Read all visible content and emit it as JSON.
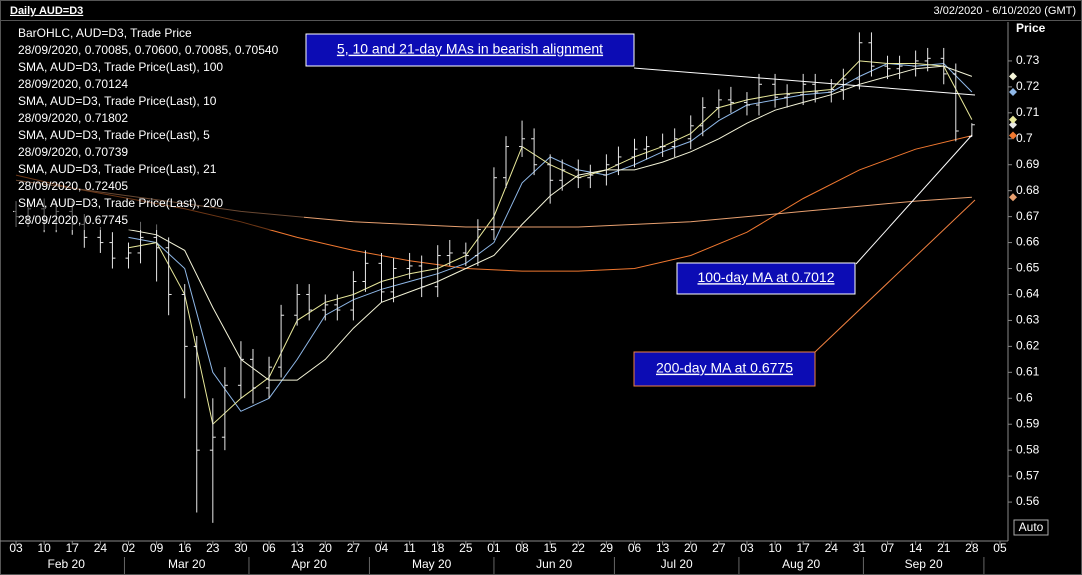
{
  "chart_data": {
    "type": "ohlc",
    "title": "Daily AUD=D3",
    "range_label": "3/02/2020 - 6/10/2020 (GMT)",
    "y_label": "Price",
    "scale_button": "Auto",
    "name": "BarOHLC, AUD=D3, Trade Price",
    "readout": "28/09/2020, 0.70085, 0.70600, 0.70085, 0.70540",
    "color": "#e8e8e8",
    "x": [
      "2020-02-03",
      "2020-02-06",
      "2020-02-10",
      "2020-02-13",
      "2020-02-17",
      "2020-02-20",
      "2020-02-24",
      "2020-02-27",
      "2020-03-02",
      "2020-03-05",
      "2020-03-09",
      "2020-03-12",
      "2020-03-16",
      "2020-03-19",
      "2020-03-23",
      "2020-03-26",
      "2020-03-30",
      "2020-04-02",
      "2020-04-06",
      "2020-04-09",
      "2020-04-13",
      "2020-04-16",
      "2020-04-20",
      "2020-04-23",
      "2020-04-27",
      "2020-04-30",
      "2020-05-04",
      "2020-05-07",
      "2020-05-11",
      "2020-05-14",
      "2020-05-18",
      "2020-05-21",
      "2020-05-25",
      "2020-05-28",
      "2020-06-01",
      "2020-06-04",
      "2020-06-08",
      "2020-06-11",
      "2020-06-15",
      "2020-06-18",
      "2020-06-22",
      "2020-06-25",
      "2020-06-29",
      "2020-07-02",
      "2020-07-06",
      "2020-07-09",
      "2020-07-13",
      "2020-07-16",
      "2020-07-20",
      "2020-07-23",
      "2020-07-27",
      "2020-07-30",
      "2020-08-03",
      "2020-08-06",
      "2020-08-10",
      "2020-08-13",
      "2020-08-17",
      "2020-08-20",
      "2020-08-24",
      "2020-08-27",
      "2020-08-31",
      "2020-09-03",
      "2020-09-07",
      "2020-09-10",
      "2020-09-14",
      "2020-09-17",
      "2020-09-21",
      "2020-09-24",
      "2020-09-28"
    ],
    "open": [
      0.672,
      0.67,
      0.673,
      0.668,
      0.672,
      0.667,
      0.662,
      0.66,
      0.654,
      0.656,
      0.662,
      0.658,
      0.64,
      0.62,
      0.58,
      0.585,
      0.605,
      0.615,
      0.604,
      0.612,
      0.632,
      0.64,
      0.634,
      0.636,
      0.634,
      0.645,
      0.652,
      0.641,
      0.65,
      0.651,
      0.643,
      0.655,
      0.656,
      0.655,
      0.665,
      0.685,
      0.697,
      0.7,
      0.69,
      0.684,
      0.688,
      0.685,
      0.686,
      0.69,
      0.693,
      0.696,
      0.697,
      0.697,
      0.7,
      0.705,
      0.712,
      0.715,
      0.714,
      0.713,
      0.721,
      0.716,
      0.717,
      0.721,
      0.718,
      0.719,
      0.723,
      0.737,
      0.728,
      0.727,
      0.728,
      0.73,
      0.731,
      0.725,
      0.70085
    ],
    "high": [
      0.676,
      0.677,
      0.677,
      0.676,
      0.676,
      0.671,
      0.666,
      0.664,
      0.66,
      0.668,
      0.667,
      0.662,
      0.644,
      0.624,
      0.6,
      0.612,
      0.622,
      0.619,
      0.616,
      0.636,
      0.644,
      0.644,
      0.64,
      0.64,
      0.649,
      0.657,
      0.656,
      0.654,
      0.656,
      0.655,
      0.659,
      0.661,
      0.66,
      0.669,
      0.689,
      0.701,
      0.707,
      0.704,
      0.694,
      0.692,
      0.692,
      0.69,
      0.694,
      0.697,
      0.7,
      0.701,
      0.702,
      0.704,
      0.709,
      0.716,
      0.719,
      0.72,
      0.718,
      0.725,
      0.725,
      0.721,
      0.725,
      0.725,
      0.723,
      0.727,
      0.741,
      0.741,
      0.732,
      0.732,
      0.734,
      0.735,
      0.735,
      0.729,
      0.706
    ],
    "low": [
      0.666,
      0.666,
      0.664,
      0.664,
      0.663,
      0.658,
      0.656,
      0.65,
      0.65,
      0.652,
      0.645,
      0.632,
      0.6,
      0.556,
      0.552,
      0.58,
      0.6,
      0.598,
      0.6,
      0.608,
      0.628,
      0.63,
      0.63,
      0.63,
      0.63,
      0.641,
      0.637,
      0.637,
      0.646,
      0.639,
      0.639,
      0.651,
      0.651,
      0.651,
      0.661,
      0.681,
      0.693,
      0.686,
      0.675,
      0.68,
      0.681,
      0.681,
      0.682,
      0.686,
      0.689,
      0.692,
      0.693,
      0.693,
      0.696,
      0.701,
      0.708,
      0.71,
      0.709,
      0.709,
      0.712,
      0.712,
      0.713,
      0.714,
      0.714,
      0.715,
      0.719,
      0.724,
      0.723,
      0.723,
      0.724,
      0.726,
      0.721,
      0.699,
      0.70085
    ],
    "close": [
      0.67,
      0.673,
      0.668,
      0.672,
      0.667,
      0.662,
      0.66,
      0.654,
      0.656,
      0.662,
      0.658,
      0.64,
      0.62,
      0.58,
      0.585,
      0.605,
      0.615,
      0.604,
      0.612,
      0.632,
      0.64,
      0.634,
      0.636,
      0.634,
      0.645,
      0.652,
      0.641,
      0.65,
      0.651,
      0.643,
      0.655,
      0.656,
      0.655,
      0.665,
      0.685,
      0.697,
      0.7,
      0.69,
      0.684,
      0.688,
      0.685,
      0.686,
      0.69,
      0.693,
      0.696,
      0.697,
      0.697,
      0.7,
      0.705,
      0.712,
      0.715,
      0.714,
      0.713,
      0.721,
      0.716,
      0.717,
      0.721,
      0.718,
      0.719,
      0.723,
      0.737,
      0.728,
      0.727,
      0.728,
      0.73,
      0.731,
      0.725,
      0.703,
      0.7054
    ],
    "series": [
      {
        "type": "line",
        "name": "SMA, AUD=D3, Trade Price(Last),  100",
        "readout": "28/09/2020, 0.70124",
        "color": "#f07830",
        "x": [
          "2020-02-03",
          "2020-02-17",
          "2020-03-02",
          "2020-03-16",
          "2020-03-30",
          "2020-04-13",
          "2020-04-27",
          "2020-05-11",
          "2020-05-25",
          "2020-06-08",
          "2020-06-22",
          "2020-07-06",
          "2020-07-20",
          "2020-08-03",
          "2020-08-17",
          "2020-08-31",
          "2020-09-14",
          "2020-09-28"
        ],
        "values": [
          0.686,
          0.681,
          0.677,
          0.673,
          0.668,
          0.662,
          0.657,
          0.653,
          0.65,
          0.649,
          0.649,
          0.65,
          0.655,
          0.664,
          0.677,
          0.688,
          0.696,
          0.70124
        ]
      },
      {
        "type": "line",
        "name": "SMA, AUD=D3, Trade Price(Last),  10",
        "readout": "28/09/2020, 0.71802",
        "color": "#8fb8e8",
        "x": [
          "2020-03-02",
          "2020-03-09",
          "2020-03-16",
          "2020-03-23",
          "2020-03-30",
          "2020-04-06",
          "2020-04-13",
          "2020-04-20",
          "2020-04-27",
          "2020-05-04",
          "2020-05-11",
          "2020-05-18",
          "2020-05-25",
          "2020-06-01",
          "2020-06-08",
          "2020-06-15",
          "2020-06-22",
          "2020-06-29",
          "2020-07-06",
          "2020-07-13",
          "2020-07-20",
          "2020-07-27",
          "2020-08-03",
          "2020-08-10",
          "2020-08-17",
          "2020-08-24",
          "2020-08-31",
          "2020-09-07",
          "2020-09-14",
          "2020-09-21",
          "2020-09-28"
        ],
        "values": [
          0.662,
          0.66,
          0.65,
          0.61,
          0.595,
          0.6,
          0.615,
          0.632,
          0.638,
          0.642,
          0.645,
          0.648,
          0.652,
          0.66,
          0.683,
          0.693,
          0.688,
          0.686,
          0.69,
          0.695,
          0.699,
          0.707,
          0.713,
          0.715,
          0.717,
          0.718,
          0.724,
          0.729,
          0.728,
          0.729,
          0.71802
        ]
      },
      {
        "type": "line",
        "name": "SMA, AUD=D3, Trade Price(Last),  5",
        "readout": "28/09/2020, 0.70739",
        "color": "#e8e89a",
        "x": [
          "2020-03-02",
          "2020-03-09",
          "2020-03-16",
          "2020-03-23",
          "2020-03-30",
          "2020-04-06",
          "2020-04-13",
          "2020-04-20",
          "2020-04-27",
          "2020-05-04",
          "2020-05-11",
          "2020-05-18",
          "2020-05-25",
          "2020-06-01",
          "2020-06-08",
          "2020-06-15",
          "2020-06-22",
          "2020-06-29",
          "2020-07-06",
          "2020-07-13",
          "2020-07-20",
          "2020-07-27",
          "2020-08-03",
          "2020-08-10",
          "2020-08-17",
          "2020-08-24",
          "2020-08-31",
          "2020-09-07",
          "2020-09-14",
          "2020-09-21",
          "2020-09-28"
        ],
        "values": [
          0.658,
          0.66,
          0.64,
          0.59,
          0.6,
          0.608,
          0.63,
          0.637,
          0.64,
          0.645,
          0.648,
          0.65,
          0.655,
          0.67,
          0.697,
          0.69,
          0.685,
          0.688,
          0.693,
          0.697,
          0.702,
          0.712,
          0.715,
          0.717,
          0.718,
          0.719,
          0.73,
          0.729,
          0.729,
          0.728,
          0.70739
        ]
      },
      {
        "type": "line",
        "name": "SMA, AUD=D3, Trade Price(Last),  21",
        "readout": "28/09/2020, 0.72405",
        "color": "#f4f4d8",
        "x": [
          "2020-03-02",
          "2020-03-09",
          "2020-03-16",
          "2020-03-23",
          "2020-03-30",
          "2020-04-06",
          "2020-04-13",
          "2020-04-20",
          "2020-04-27",
          "2020-05-04",
          "2020-05-11",
          "2020-05-18",
          "2020-05-25",
          "2020-06-01",
          "2020-06-08",
          "2020-06-15",
          "2020-06-22",
          "2020-06-29",
          "2020-07-06",
          "2020-07-13",
          "2020-07-20",
          "2020-07-27",
          "2020-08-03",
          "2020-08-10",
          "2020-08-17",
          "2020-08-24",
          "2020-08-31",
          "2020-09-07",
          "2020-09-14",
          "2020-09-21",
          "2020-09-28"
        ],
        "values": [
          0.665,
          0.663,
          0.657,
          0.635,
          0.615,
          0.607,
          0.607,
          0.615,
          0.627,
          0.637,
          0.641,
          0.645,
          0.65,
          0.655,
          0.667,
          0.678,
          0.686,
          0.688,
          0.688,
          0.691,
          0.695,
          0.7,
          0.706,
          0.711,
          0.714,
          0.717,
          0.721,
          0.724,
          0.727,
          0.728,
          0.72405
        ]
      },
      {
        "type": "line",
        "name": "SMA, AUD=D3, Trade Price(Last),  200",
        "readout": "28/09/2020, 0.67745",
        "color": "#e8a070",
        "x": [
          "2020-02-03",
          "2020-02-17",
          "2020-03-02",
          "2020-03-16",
          "2020-03-30",
          "2020-04-13",
          "2020-04-27",
          "2020-05-11",
          "2020-05-25",
          "2020-06-08",
          "2020-06-22",
          "2020-07-06",
          "2020-07-20",
          "2020-08-03",
          "2020-08-17",
          "2020-08-31",
          "2020-09-14",
          "2020-09-28"
        ],
        "values": [
          0.684,
          0.681,
          0.678,
          0.675,
          0.672,
          0.67,
          0.668,
          0.667,
          0.666,
          0.666,
          0.666,
          0.667,
          0.668,
          0.67,
          0.672,
          0.674,
          0.676,
          0.67745
        ]
      }
    ],
    "xlim": [
      "2020-02-01",
      "2020-10-07"
    ],
    "xticks": [
      {
        "value": "2020-02-03",
        "label": "03"
      },
      {
        "value": "2020-02-10",
        "label": "10"
      },
      {
        "value": "2020-02-17",
        "label": "17"
      },
      {
        "value": "2020-02-24",
        "label": "24"
      },
      {
        "value": "2020-03-02",
        "label": "02"
      },
      {
        "value": "2020-03-09",
        "label": "09"
      },
      {
        "value": "2020-03-16",
        "label": "16"
      },
      {
        "value": "2020-03-23",
        "label": "23"
      },
      {
        "value": "2020-03-30",
        "label": "30"
      },
      {
        "value": "2020-04-06",
        "label": "06"
      },
      {
        "value": "2020-04-13",
        "label": "13"
      },
      {
        "value": "2020-04-20",
        "label": "20"
      },
      {
        "value": "2020-04-27",
        "label": "27"
      },
      {
        "value": "2020-05-04",
        "label": "04"
      },
      {
        "value": "2020-05-11",
        "label": "11"
      },
      {
        "value": "2020-05-18",
        "label": "18"
      },
      {
        "value": "2020-05-25",
        "label": "25"
      },
      {
        "value": "2020-06-01",
        "label": "01"
      },
      {
        "value": "2020-06-08",
        "label": "08"
      },
      {
        "value": "2020-06-15",
        "label": "15"
      },
      {
        "value": "2020-06-22",
        "label": "22"
      },
      {
        "value": "2020-06-29",
        "label": "29"
      },
      {
        "value": "2020-07-06",
        "label": "06"
      },
      {
        "value": "2020-07-13",
        "label": "13"
      },
      {
        "value": "2020-07-20",
        "label": "20"
      },
      {
        "value": "2020-07-27",
        "label": "27"
      },
      {
        "value": "2020-08-03",
        "label": "03"
      },
      {
        "value": "2020-08-10",
        "label": "10"
      },
      {
        "value": "2020-08-17",
        "label": "17"
      },
      {
        "value": "2020-08-24",
        "label": "24"
      },
      {
        "value": "2020-08-31",
        "label": "31"
      },
      {
        "value": "2020-09-07",
        "label": "07"
      },
      {
        "value": "2020-09-14",
        "label": "14"
      },
      {
        "value": "2020-09-21",
        "label": "21"
      },
      {
        "value": "2020-09-28",
        "label": "28"
      },
      {
        "value": "2020-10-05",
        "label": "05"
      }
    ],
    "xmonths": [
      {
        "value": "2020-02",
        "label": "Feb 20"
      },
      {
        "value": "2020-03",
        "label": "Mar 20"
      },
      {
        "value": "2020-04",
        "label": "Apr 20"
      },
      {
        "value": "2020-05",
        "label": "May 20"
      },
      {
        "value": "2020-06",
        "label": "Jun 20"
      },
      {
        "value": "2020-07",
        "label": "Jul 20"
      },
      {
        "value": "2020-08",
        "label": "Aug 20"
      },
      {
        "value": "2020-09",
        "label": "Sep 20"
      }
    ],
    "ylim": [
      0.545,
      0.745
    ],
    "yticks": [
      0.56,
      0.57,
      0.58,
      0.59,
      0.6,
      0.61,
      0.62,
      0.63,
      0.64,
      0.65,
      0.66,
      0.67,
      0.68,
      0.69,
      0.7,
      0.71,
      0.72,
      0.73
    ],
    "annotations": [
      {
        "text": "5, 10 and 21-day MAs in bearish alignment",
        "color": "#ffffff"
      },
      {
        "text": "100-day MA at 0.7012",
        "color": "#ffffff"
      },
      {
        "text": "200-day MA at 0.6775",
        "color": "#f08040"
      }
    ]
  }
}
